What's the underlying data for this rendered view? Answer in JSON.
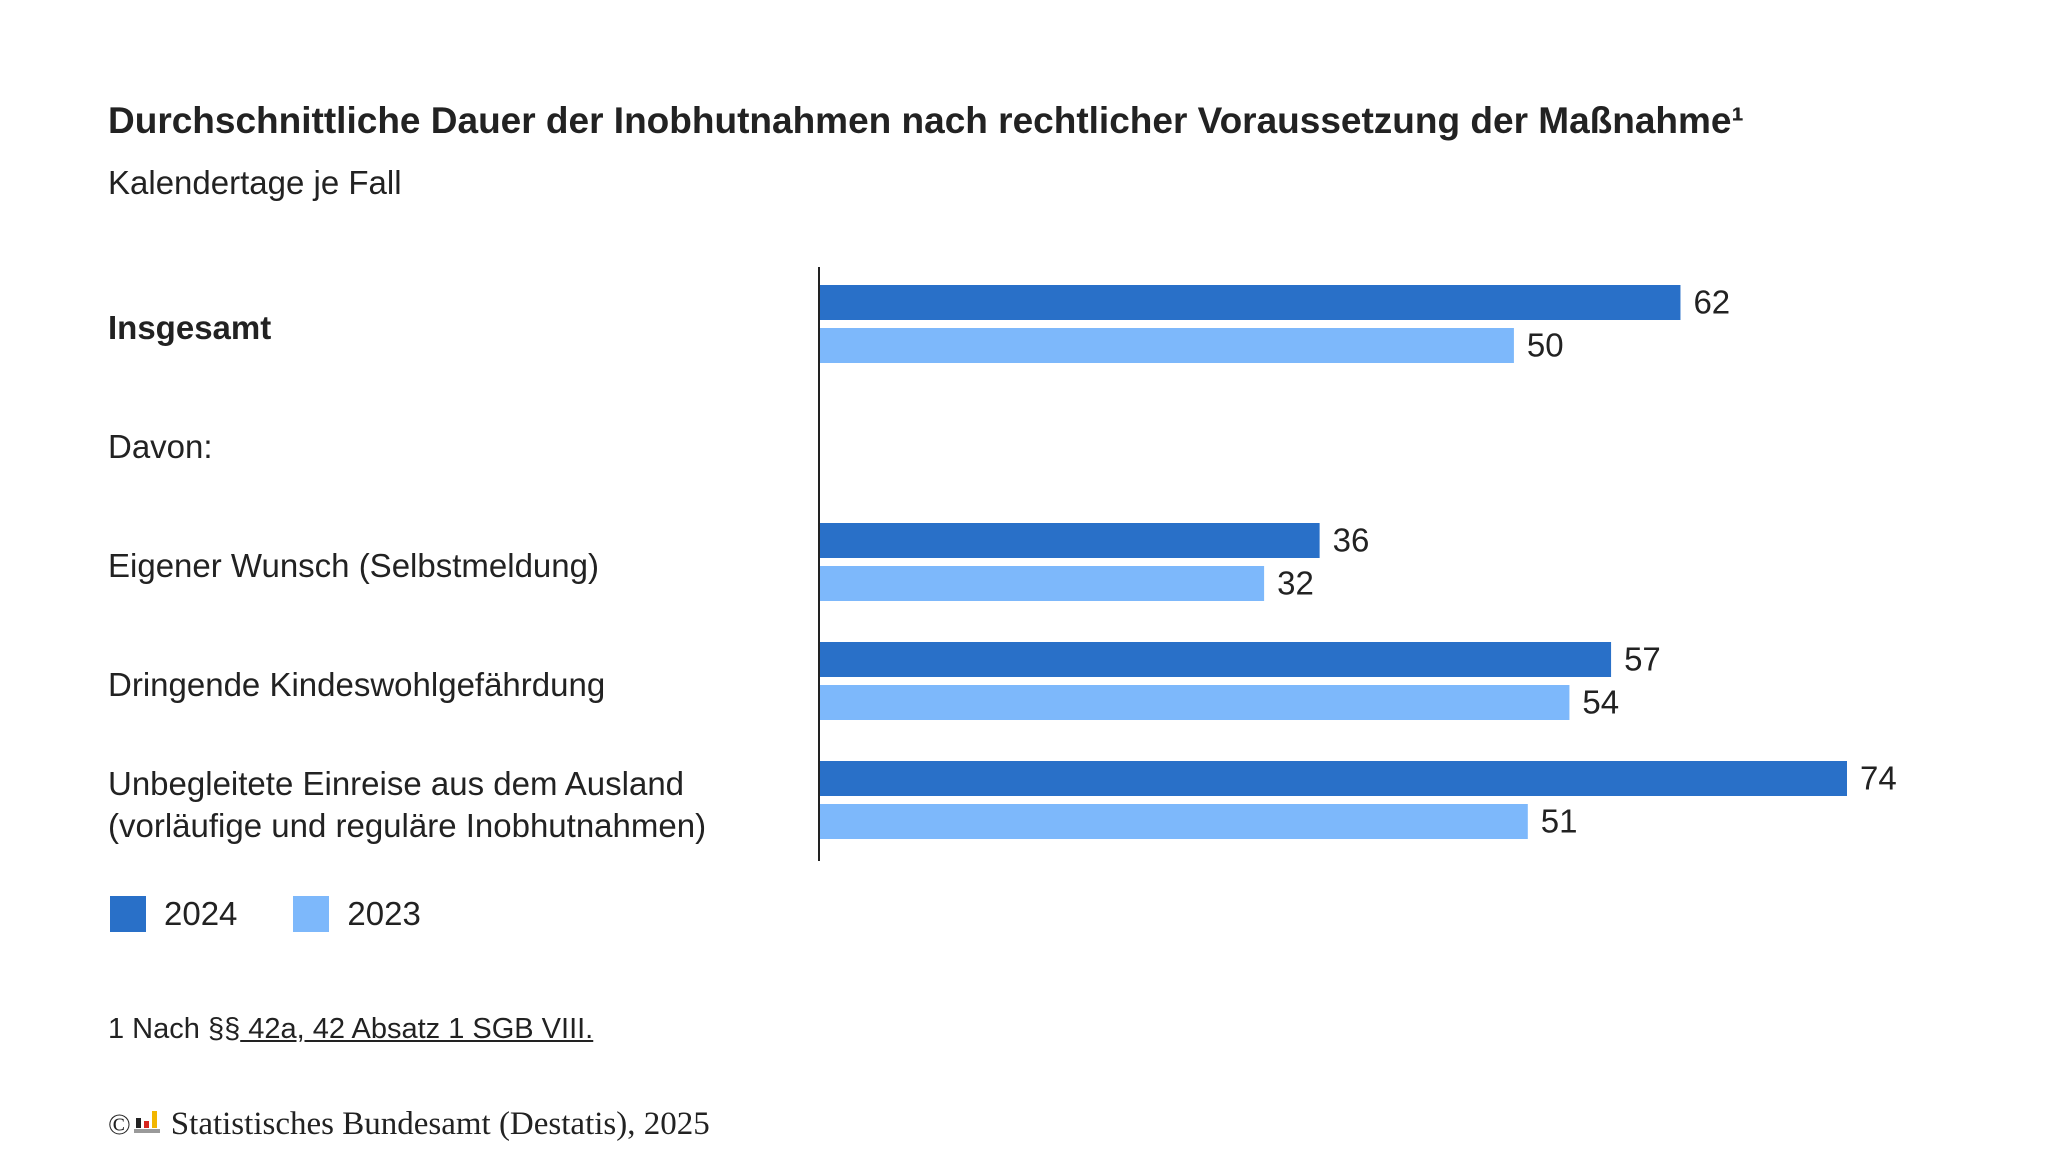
{
  "title": "Durchschnittliche Dauer der Inobhutnahmen nach rechtlicher Voraussetzung der Maßnahme¹",
  "subtitle": "Kalendertage je Fall",
  "labels": {
    "davon": "Davon:",
    "cat3_line1": "Unbegleitete Einreise aus dem Ausland",
    "cat3_line2": "(vorläufige und reguläre Inobhutnahmen)"
  },
  "chart_data": {
    "type": "bar",
    "orientation": "horizontal",
    "title": "Durchschnittliche Dauer der Inobhutnahmen nach rechtlicher Voraussetzung der Maßnahme¹",
    "subtitle": "Kalendertage je Fall",
    "categories": [
      "Insgesamt",
      "Eigener Wunsch (Selbstmeldung)",
      "Dringende Kindeswohlgefährdung",
      "Unbegleitete Einreise aus dem Ausland (vorläufige und reguläre Inobhutnahmen)"
    ],
    "series": [
      {
        "name": "2024",
        "color": "#2970c8",
        "values": [
          62,
          36,
          57,
          74
        ]
      },
      {
        "name": "2023",
        "color": "#7db8fb",
        "values": [
          50,
          32,
          54,
          51
        ]
      }
    ],
    "xlim": [
      0,
      74
    ],
    "grid": false,
    "legend_position": "bottom-left"
  },
  "legend": [
    {
      "label": "2024",
      "color": "#2970c8"
    },
    {
      "label": "2023",
      "color": "#7db8fb"
    }
  ],
  "footnote": {
    "prefix": "1 Nach §§",
    "link": " 42a, 42 Absatz 1 SGB VIII."
  },
  "copyright": {
    "symbol": "©",
    "text": "Statistisches Bundesamt (Destatis), 2025",
    "logo_icon": "destatis-logo-icon"
  }
}
